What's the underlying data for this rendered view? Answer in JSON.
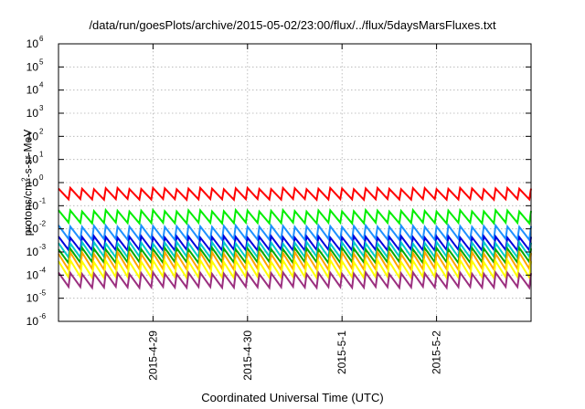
{
  "chart_data": {
    "type": "line",
    "title": "/data/run/goesPlots/archive/2015-05-02/23:00/flux/../flux/5daysMarsFluxes.txt",
    "xlabel": "Coordinated Universal Time (UTC)",
    "ylabel": {
      "pre": "protons/cm",
      "sup": "2",
      "post": "-s-sr-MeV"
    },
    "y_scale": "log",
    "ylim": [
      1e-06,
      1000000.0
    ],
    "y_ticks": [
      {
        "exp": "-6",
        "value": 1e-06
      },
      {
        "exp": "-5",
        "value": 1e-05
      },
      {
        "exp": "-4",
        "value": 0.0001
      },
      {
        "exp": "-3",
        "value": 0.001
      },
      {
        "exp": "-2",
        "value": 0.01
      },
      {
        "exp": "-1",
        "value": 0.1
      },
      {
        "exp": "0",
        "value": 1
      },
      {
        "exp": "1",
        "value": 10
      },
      {
        "exp": "2",
        "value": 100
      },
      {
        "exp": "3",
        "value": 1000
      },
      {
        "exp": "4",
        "value": 10000
      },
      {
        "exp": "5",
        "value": 100000
      },
      {
        "exp": "6",
        "value": 1000000
      }
    ],
    "xlim": [
      "2015-04-28 00:00",
      "2015-05-03 00:00"
    ],
    "x_ticks": [
      "2015-4-29",
      "2015-4-30",
      "2015-5-1",
      "2015-5-2"
    ],
    "grid": true,
    "legend": "none",
    "sawtooth_teeth": 40,
    "series": [
      {
        "color": "#ff0000",
        "peak": 0.55,
        "trough": 0.19
      },
      {
        "color": "#00ee00",
        "peak": 0.06,
        "trough": 0.018
      },
      {
        "color": "#1e90ff",
        "peak": 0.013,
        "trough": 0.0035
      },
      {
        "color": "#0000dd",
        "peak": 0.0045,
        "trough": 0.0012
      },
      {
        "color": "#00cccc",
        "peak": 0.0025,
        "trough": 0.0006
      },
      {
        "color": "#00aa00",
        "peak": 0.0014,
        "trough": 0.00035
      },
      {
        "color": "#ffa500",
        "peak": 0.0009,
        "trough": 0.00018
      },
      {
        "color": "#ffff00",
        "peak": 0.0004,
        "trough": 8e-05
      },
      {
        "color": "#9b2f7f",
        "peak": 0.00012,
        "trough": 3e-05
      }
    ]
  }
}
